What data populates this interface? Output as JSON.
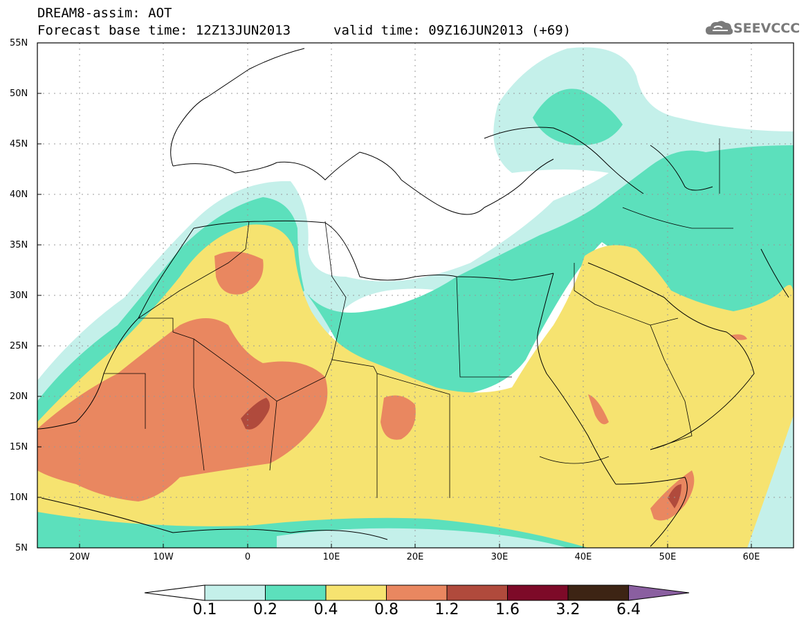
{
  "header": {
    "title_line1": "DREAM8-assim: AOT",
    "title_line2": "Forecast base time: 12Z13JUN2013",
    "valid_time": "valid time: 09Z16JUN2013 (+69)",
    "logo_text": "SEEVCCC",
    "logo_icon": "cloud-icon"
  },
  "map": {
    "lat_labels": [
      "55N",
      "50N",
      "45N",
      "40N",
      "35N",
      "30N",
      "25N",
      "20N",
      "15N",
      "10N",
      "5N"
    ],
    "lon_labels": [
      "20W",
      "10W",
      "0",
      "10E",
      "20E",
      "30E",
      "40E",
      "50E",
      "60E"
    ],
    "lat_range": [
      5,
      55
    ],
    "lon_range": [
      -25,
      65
    ],
    "grid": true,
    "variable": "AOT"
  },
  "colorbar": {
    "labels": [
      "0.1",
      "0.2",
      "0.4",
      "0.8",
      "1.2",
      "1.6",
      "3.2",
      "6.4"
    ],
    "colors": [
      "#ffffff",
      "#c4f0ea",
      "#5ce0bc",
      "#f6e370",
      "#e98760",
      "#b04a3c",
      "#7d0a28",
      "#3d2414",
      "#8a5fa0"
    ]
  }
}
